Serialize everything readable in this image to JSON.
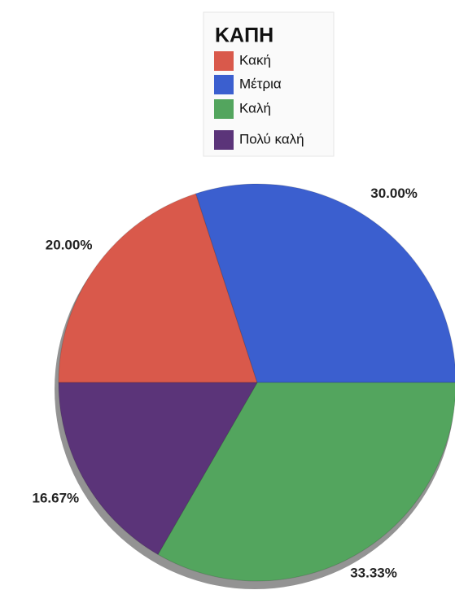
{
  "chart_data": {
    "type": "pie",
    "title": "ΚΑΠΗ",
    "categories": [
      "Κακή",
      "Μέτρια",
      "Καλή",
      "Πολύ καλή"
    ],
    "values": [
      20,
      30,
      33.33,
      16.67
    ],
    "value_labels": [
      "20.00%",
      "30.00%",
      "33.33%",
      "16.67%"
    ],
    "colors": [
      "#d9594b",
      "#3b5fcf",
      "#53a55e",
      "#5b3479"
    ],
    "legend": "top"
  }
}
